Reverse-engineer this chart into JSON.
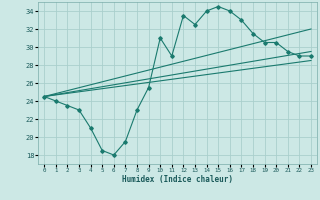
{
  "xlabel": "Humidex (Indice chaleur)",
  "xlim": [
    -0.5,
    23.5
  ],
  "ylim": [
    17,
    35
  ],
  "yticks": [
    18,
    20,
    22,
    24,
    26,
    28,
    30,
    32,
    34
  ],
  "xticks": [
    0,
    1,
    2,
    3,
    4,
    5,
    6,
    7,
    8,
    9,
    10,
    11,
    12,
    13,
    14,
    15,
    16,
    17,
    18,
    19,
    20,
    21,
    22,
    23
  ],
  "bg_color": "#cce8e5",
  "grid_color": "#aacfcc",
  "line_color": "#1a7a6e",
  "series": {
    "main": {
      "x": [
        0,
        1,
        2,
        3,
        4,
        5,
        6,
        7,
        8,
        9,
        10,
        11,
        12,
        13,
        14,
        15,
        16,
        17,
        18,
        19,
        20,
        21,
        22,
        23
      ],
      "y": [
        24.5,
        24.0,
        23.5,
        23.0,
        21.0,
        18.5,
        18.0,
        19.5,
        23.0,
        25.5,
        31.0,
        29.0,
        33.5,
        32.5,
        34.0,
        34.5,
        34.0,
        33.0,
        31.5,
        30.5,
        30.5,
        29.5,
        29.0,
        29.0
      ]
    },
    "line1": {
      "x": [
        0,
        23
      ],
      "y": [
        24.5,
        32.0
      ]
    },
    "line2": {
      "x": [
        0,
        23
      ],
      "y": [
        24.5,
        29.5
      ]
    },
    "line3": {
      "x": [
        0,
        23
      ],
      "y": [
        24.5,
        28.5
      ]
    }
  }
}
